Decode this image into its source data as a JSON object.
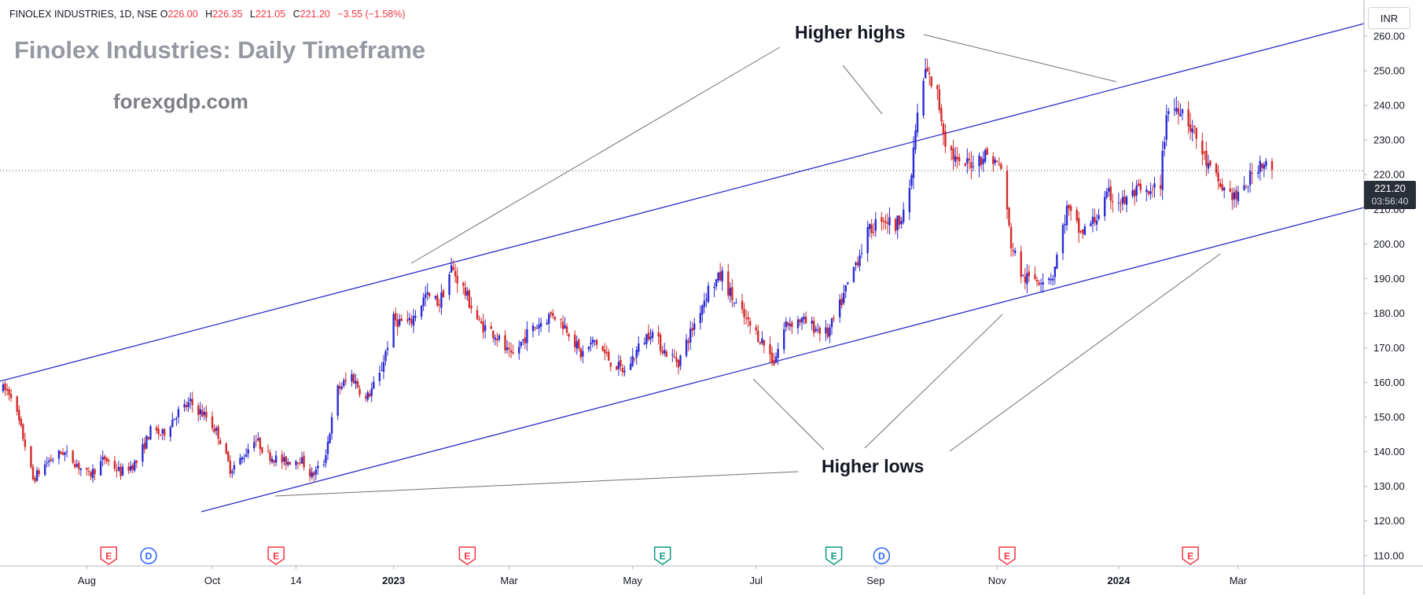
{
  "header": {
    "symbol": "FINOLEX INDUSTRIES, 1D, NSE",
    "open_label": "O",
    "open": "226.00",
    "high_label": "H",
    "high": "226.35",
    "low_label": "L",
    "low": "221.05",
    "close_label": "C",
    "close": "221.20",
    "change": "−3.55 (−1.58%)"
  },
  "title": "Finolex Industries: Daily Timeframe",
  "watermark": "forexgdp.com",
  "currency": "INR",
  "last_price": {
    "price": "221.20",
    "countdown": "03:56:40"
  },
  "annotations": {
    "higher_highs": "Higher highs",
    "higher_lows": "Higher lows"
  },
  "colors": {
    "up": "#2b2bd6",
    "down": "#d42a2a",
    "trendline": "#2c2cc8",
    "pointer": "#707070",
    "earnings_badge": "#f23645",
    "earnings_green": "#089981",
    "dividend_badge": "#2962ff"
  },
  "chart_data": {
    "type": "candlestick",
    "x_ticks": [
      "Aug",
      "Oct",
      "14",
      "2023",
      "Mar",
      "May",
      "Jul",
      "Sep",
      "Nov",
      "2024",
      "Mar"
    ],
    "y_ticks": [
      110,
      120,
      130,
      140,
      150,
      160,
      170,
      180,
      190,
      200,
      210,
      220,
      230,
      240,
      250,
      260
    ],
    "ylim": [
      107,
      270
    ],
    "grid": false,
    "path": [
      [
        "2022-06-20",
        158
      ],
      [
        "2022-06-24",
        157
      ],
      [
        "2022-07-01",
        142
      ],
      [
        "2022-07-05",
        132
      ],
      [
        "2022-07-12",
        137
      ],
      [
        "2022-07-20",
        140
      ],
      [
        "2022-07-26",
        137
      ],
      [
        "2022-08-02",
        133
      ],
      [
        "2022-08-10",
        138
      ],
      [
        "2022-08-18",
        134
      ],
      [
        "2022-08-26",
        137
      ],
      [
        "2022-09-02",
        146
      ],
      [
        "2022-09-08",
        145
      ],
      [
        "2022-09-15",
        151
      ],
      [
        "2022-09-22",
        154
      ],
      [
        "2022-09-30",
        150
      ],
      [
        "2022-10-06",
        145
      ],
      [
        "2022-10-12",
        135
      ],
      [
        "2022-10-18",
        138
      ],
      [
        "2022-10-24",
        144
      ],
      [
        "2022-10-31",
        139
      ],
      [
        "2022-11-08",
        137
      ],
      [
        "2022-11-16",
        138
      ],
      [
        "2022-11-22",
        133
      ],
      [
        "2022-11-28",
        137
      ],
      [
        "2022-12-05",
        158
      ],
      [
        "2022-12-12",
        162
      ],
      [
        "2022-12-19",
        155
      ],
      [
        "2022-12-26",
        162
      ],
      [
        "2023-01-02",
        178
      ],
      [
        "2023-01-10",
        177
      ],
      [
        "2023-01-18",
        185
      ],
      [
        "2023-01-25",
        183
      ],
      [
        "2023-01-31",
        193
      ],
      [
        "2023-02-06",
        187
      ],
      [
        "2023-02-14",
        177
      ],
      [
        "2023-02-22",
        174
      ],
      [
        "2023-03-02",
        167
      ],
      [
        "2023-03-10",
        174
      ],
      [
        "2023-03-16",
        177
      ],
      [
        "2023-03-23",
        180
      ],
      [
        "2023-03-31",
        175
      ],
      [
        "2023-04-06",
        168
      ],
      [
        "2023-04-13",
        172
      ],
      [
        "2023-04-21",
        166
      ],
      [
        "2023-04-28",
        163
      ],
      [
        "2023-05-05",
        170
      ],
      [
        "2023-05-11",
        175
      ],
      [
        "2023-05-18",
        169
      ],
      [
        "2023-05-25",
        166
      ],
      [
        "2023-06-02",
        177
      ],
      [
        "2023-06-09",
        187
      ],
      [
        "2023-06-16",
        191
      ],
      [
        "2023-06-22",
        183
      ],
      [
        "2023-06-29",
        177
      ],
      [
        "2023-07-06",
        172
      ],
      [
        "2023-07-12",
        166
      ],
      [
        "2023-07-18",
        177
      ],
      [
        "2023-07-25",
        178
      ],
      [
        "2023-08-01",
        176
      ],
      [
        "2023-08-08",
        174
      ],
      [
        "2023-08-14",
        182
      ],
      [
        "2023-08-21",
        193
      ],
      [
        "2023-08-28",
        203
      ],
      [
        "2023-09-04",
        208
      ],
      [
        "2023-09-11",
        205
      ],
      [
        "2023-09-18",
        214
      ],
      [
        "2023-09-21",
        233
      ],
      [
        "2023-09-26",
        250
      ],
      [
        "2023-10-02",
        243
      ],
      [
        "2023-10-06",
        230
      ],
      [
        "2023-10-13",
        222
      ],
      [
        "2023-10-20",
        224
      ],
      [
        "2023-10-27",
        226
      ],
      [
        "2023-11-03",
        222
      ],
      [
        "2023-11-08",
        200
      ],
      [
        "2023-11-14",
        190
      ],
      [
        "2023-11-22",
        190
      ],
      [
        "2023-11-29",
        191
      ],
      [
        "2023-12-06",
        210
      ],
      [
        "2023-12-13",
        203
      ],
      [
        "2023-12-20",
        207
      ],
      [
        "2023-12-27",
        214
      ],
      [
        "2024-01-03",
        212
      ],
      [
        "2024-01-10",
        215
      ],
      [
        "2024-01-17",
        214
      ],
      [
        "2024-01-22",
        218
      ],
      [
        "2024-01-25",
        238
      ],
      [
        "2024-02-01",
        240
      ],
      [
        "2024-02-08",
        232
      ],
      [
        "2024-02-15",
        222
      ],
      [
        "2024-02-22",
        216
      ],
      [
        "2024-03-01",
        213
      ],
      [
        "2024-03-06",
        218
      ],
      [
        "2024-03-12",
        224
      ],
      [
        "2024-03-18",
        221.2
      ]
    ],
    "events": [
      {
        "date": "2022-08-12",
        "label": "E",
        "kind": "earnings"
      },
      {
        "date": "2022-09-01",
        "label": "D",
        "kind": "dividend"
      },
      {
        "date": "2022-11-04",
        "label": "E",
        "kind": "earnings"
      },
      {
        "date": "2023-02-08",
        "label": "E",
        "kind": "earnings"
      },
      {
        "date": "2023-05-17",
        "label": "E",
        "kind": "earnings-green"
      },
      {
        "date": "2023-08-11",
        "label": "E",
        "kind": "earnings-green"
      },
      {
        "date": "2023-09-04",
        "label": "D",
        "kind": "dividend"
      },
      {
        "date": "2023-11-06",
        "label": "E",
        "kind": "earnings"
      },
      {
        "date": "2024-02-06",
        "label": "E",
        "kind": "earnings"
      }
    ]
  }
}
